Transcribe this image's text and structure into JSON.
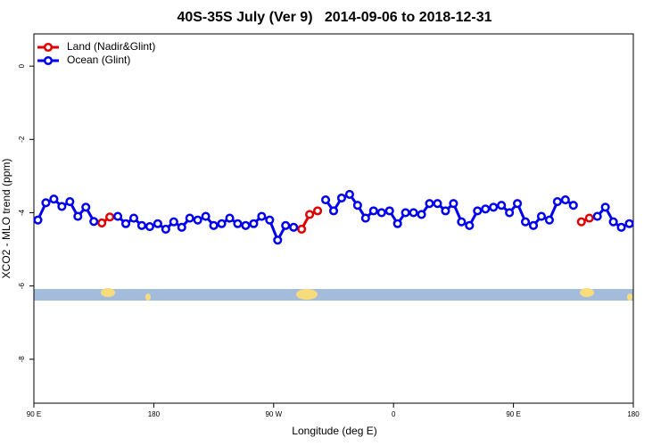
{
  "chart_data": {
    "type": "line",
    "title": "40S-35S July (Ver 9)   2014-09-06 to 2018-12-31",
    "x_label": "Longitude (deg E)",
    "y_label": "XCO2 - MLO trend (ppm)",
    "x": [
      93,
      99,
      105,
      111,
      117,
      123,
      129,
      135,
      141,
      147,
      153,
      159,
      165,
      171,
      177,
      183,
      189,
      195,
      201,
      207,
      213,
      219,
      225,
      231,
      237,
      243,
      249,
      255,
      261,
      267,
      273,
      279,
      285,
      291,
      297,
      303,
      309,
      315,
      321,
      327,
      333,
      339,
      345,
      351,
      357,
      363,
      369,
      375,
      381,
      387,
      393,
      399,
      405,
      411,
      417,
      423,
      429,
      435,
      441,
      447,
      453,
      459,
      465,
      471,
      477,
      483,
      489,
      495,
      501,
      507,
      513,
      519,
      525,
      531,
      537
    ],
    "series": [
      {
        "name": "Land (Nadir&Glint)",
        "color": "#e00000",
        "values": [
          null,
          null,
          null,
          null,
          null,
          null,
          null,
          null,
          -4.28,
          -4.12,
          null,
          null,
          null,
          null,
          null,
          null,
          null,
          null,
          null,
          null,
          null,
          null,
          null,
          null,
          null,
          null,
          null,
          null,
          null,
          null,
          null,
          null,
          null,
          -4.45,
          -4.05,
          -3.95,
          null,
          null,
          null,
          null,
          null,
          null,
          null,
          null,
          null,
          null,
          null,
          null,
          null,
          null,
          null,
          null,
          null,
          null,
          null,
          null,
          null,
          null,
          null,
          null,
          null,
          null,
          null,
          null,
          null,
          null,
          null,
          null,
          -4.25,
          -4.15,
          null,
          null,
          null,
          null,
          null
        ]
      },
      {
        "name": "Ocean (Glint)",
        "color": "#0000ee",
        "values": [
          -4.2,
          -3.73,
          -3.63,
          -3.83,
          -3.7,
          -4.1,
          -3.85,
          -4.24,
          null,
          null,
          -4.1,
          -4.3,
          -4.15,
          -4.35,
          -4.38,
          -4.3,
          -4.45,
          -4.25,
          -4.4,
          -4.15,
          -4.2,
          -4.1,
          -4.35,
          -4.3,
          -4.15,
          -4.3,
          -4.35,
          -4.3,
          -4.1,
          -4.2,
          -4.75,
          -4.35,
          -4.4,
          null,
          null,
          null,
          -3.65,
          -3.95,
          -3.6,
          -3.5,
          -3.8,
          -4.15,
          -3.95,
          -4.0,
          -3.95,
          -4.3,
          -4.0,
          -4.0,
          -4.05,
          -3.75,
          -3.75,
          -3.95,
          -3.75,
          -4.25,
          -4.35,
          -3.95,
          -3.9,
          -3.85,
          -3.8,
          -4.0,
          -3.75,
          -4.25,
          -4.35,
          -4.1,
          -4.2,
          -3.7,
          -3.65,
          -3.8,
          null,
          null,
          -4.1,
          -3.85,
          -4.25,
          -4.4,
          -4.3
        ]
      }
    ],
    "xlim": [
      90,
      540
    ],
    "xticks": [
      {
        "value": 90,
        "label": "90 E"
      },
      180,
      {
        "value": 270,
        "label": "90 W"
      },
      {
        "value": 360,
        "label": "0"
      },
      {
        "value": 450,
        "label": "90 E"
      },
      {
        "value": 540,
        "label": "180"
      }
    ],
    "ylim": [
      -9.2,
      0.88
    ],
    "yticks": [
      0,
      -2,
      -4,
      -6,
      -8
    ],
    "legend": "top-left"
  }
}
